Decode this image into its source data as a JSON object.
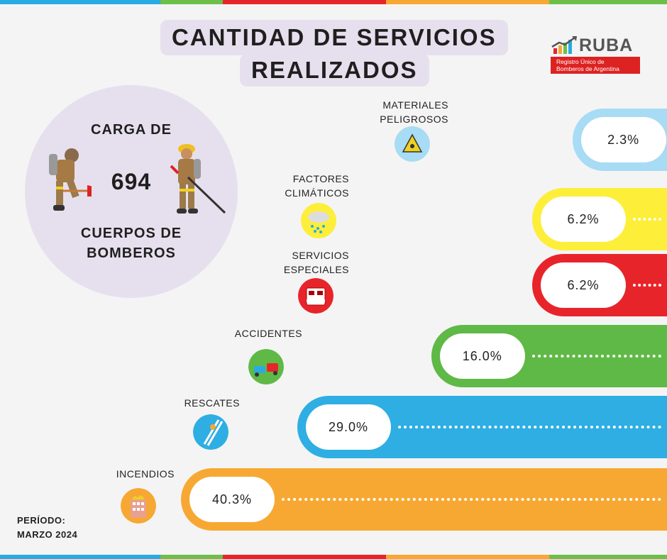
{
  "header": {
    "title_line1": "CANTIDAD DE SERVICIOS",
    "title_line2": "REALIZADOS"
  },
  "logo": {
    "name": "RUBA",
    "subtitle_line1": "Registro Único de",
    "subtitle_line2": "Bomberos de Argentina"
  },
  "summary": {
    "label_top": "CARGA DE",
    "count": "694",
    "label_bottom": "CUERPOS DE BOMBEROS"
  },
  "period": {
    "label": "PERÍODO:",
    "value": "MARZO 2024"
  },
  "stripe_colors": [
    "#29abe2",
    "#6cc04a",
    "#e8242b",
    "#f7a833",
    "#6cc04a"
  ],
  "chart_data": {
    "type": "bar",
    "categories": [
      "MATERIALES PELIGROSOS",
      "FACTORES CLIMÁTICOS",
      "SERVICIOS ESPECIALES",
      "ACCIDENTES",
      "RESCATES",
      "INCENDIOS"
    ],
    "values": [
      2.3,
      6.2,
      6.2,
      16.0,
      29.0,
      40.3
    ],
    "labels": [
      "2.3%",
      "6.2%",
      "6.2%",
      "16.0%",
      "29.0%",
      "40.3%"
    ],
    "colors": [
      "#a8dbf4",
      "#fdee3a",
      "#e8242b",
      "#5fb946",
      "#2eaee3",
      "#f7a833"
    ],
    "icons": [
      "hazard-icon",
      "rain-cloud-icon",
      "fire-truck-icon",
      "car-crash-icon",
      "ladder-rescue-icon",
      "burning-building-icon"
    ]
  }
}
